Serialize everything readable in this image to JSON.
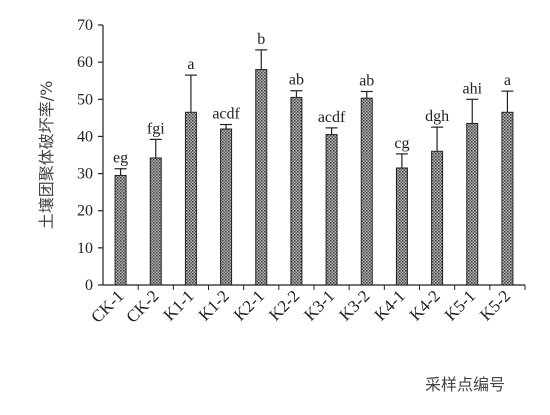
{
  "chart_data": {
    "type": "bar",
    "ylabel": "土壤团聚体破坏率/%",
    "xlabel": "采样点编号",
    "ylim": [
      0,
      70
    ],
    "yticks": [
      0,
      10,
      20,
      30,
      40,
      50,
      60,
      70
    ],
    "categories": [
      "CK-1",
      "CK-2",
      "K1-1",
      "K1-2",
      "K2-1",
      "K2-2",
      "K3-1",
      "K3-2",
      "K4-1",
      "K4-2",
      "K5-1",
      "K5-2"
    ],
    "values": [
      29.5,
      34.2,
      46.5,
      42.0,
      58.0,
      50.5,
      40.5,
      50.3,
      31.5,
      36.0,
      43.5,
      46.5
    ],
    "error": [
      1.8,
      5.0,
      10.0,
      1.2,
      5.3,
      1.8,
      1.8,
      1.8,
      3.8,
      6.5,
      6.5,
      5.7
    ],
    "significance": [
      "eg",
      "fgi",
      "a",
      "acdf",
      "b",
      "ab",
      "acdf",
      "ab",
      "cg",
      "dgh",
      "ahi",
      "a"
    ],
    "grid": false,
    "bar_pattern": "dotted gray"
  }
}
